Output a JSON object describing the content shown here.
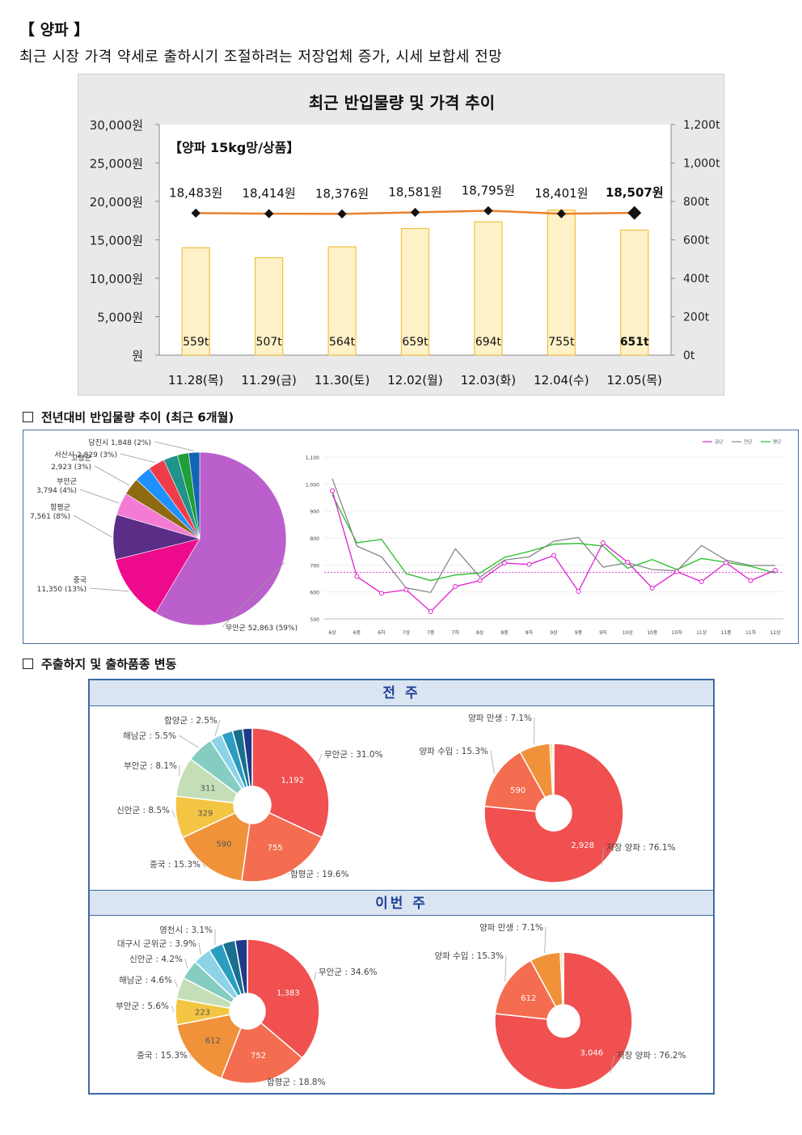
{
  "header": {
    "title": "【 양파 】",
    "subtitle": "최근 시장 가격 약세로 출하시기 조절하려는 저장업체 증가, 시세 보합세 전망"
  },
  "chart_data": [
    {
      "type": "bar",
      "title": "최근 반입물량 및 가격 추이",
      "annotation": "【양파 15kg망/상품】",
      "categories": [
        "11.28(목)",
        "11.29(금)",
        "11.30(토)",
        "12.02(월)",
        "12.03(화)",
        "12.04(수)",
        "12.05(목)"
      ],
      "series": [
        {
          "name": "반입물량",
          "unit": "t",
          "values": [
            559,
            507,
            564,
            659,
            694,
            755,
            651
          ],
          "labels": [
            "559t",
            "507t",
            "564t",
            "659t",
            "694t",
            "755t",
            "651t"
          ]
        },
        {
          "name": "가격",
          "unit": "원",
          "values": [
            18483,
            18414,
            18376,
            18581,
            18795,
            18401,
            18507
          ],
          "labels": [
            "18,483원",
            "18,414원",
            "18,376원",
            "18,581원",
            "18,795원",
            "18,401원",
            "18,507원"
          ]
        }
      ],
      "y_left": {
        "ticks": [
          "30,000원",
          "25,000원",
          "20,000원",
          "15,000원",
          "10,000원",
          "5,000원",
          "원"
        ],
        "ylim": [
          0,
          30000
        ]
      },
      "y_right": {
        "ticks": [
          "1,200t",
          "1,000t",
          "800t",
          "600t",
          "400t",
          "200t",
          "0t"
        ],
        "ylim": [
          0,
          1200
        ]
      },
      "colors": {
        "bar_fill": "#fff2c9",
        "bar_stroke": "#f0c040",
        "line": "#e8822e",
        "marker": "#111111"
      }
    },
    {
      "type": "pie",
      "slices": [
        {
          "label": "무안군 52,863 (59%)",
          "value": 52863,
          "color": "#bb5fcc"
        },
        {
          "label": "중국\n11,350 (13%)",
          "value": 11350,
          "color": "#ee0a8c"
        },
        {
          "label": "함평군\n7,561 (8%)",
          "value": 7561,
          "color": "#5a2d86"
        },
        {
          "label": "부안군\n3,794 (4%)",
          "value": 3794,
          "color": "#f47bd4"
        },
        {
          "label": "고령군\n2,923 (3%)",
          "value": 2923,
          "color": "#8d6a10"
        },
        {
          "label": "",
          "value": 2800,
          "color": "#1e90ff"
        },
        {
          "label": "서산시 2,829 (3%)",
          "value": 2829,
          "color": "#f03c4a"
        },
        {
          "label": "",
          "value": 2400,
          "color": "#20938a"
        },
        {
          "label": "",
          "value": 1900,
          "color": "#1f9e3a"
        },
        {
          "label": "당진시 1,848 (2%)",
          "value": 1848,
          "color": "#1464b4"
        }
      ]
    },
    {
      "type": "line",
      "legend": [
        "금년",
        "전년",
        "평년"
      ],
      "x": [
        "6상",
        "6중",
        "6하",
        "7상",
        "7중",
        "7하",
        "8상",
        "8중",
        "8하",
        "9상",
        "9중",
        "9하",
        "10상",
        "10중",
        "10하",
        "11상",
        "11중",
        "11하",
        "12상"
      ],
      "y_ticks": [
        "1,100",
        "1,000",
        "900",
        "800",
        "700",
        "600",
        "500"
      ],
      "ylim": [
        500,
        1100
      ],
      "series": [
        {
          "name": "금년",
          "color": "#e020d0",
          "values": [
            975,
            657,
            595,
            608,
            527,
            620,
            642,
            707,
            702,
            735,
            602,
            782,
            710,
            614,
            675,
            638,
            708,
            642,
            680
          ]
        },
        {
          "name": "전년",
          "color": "#888888",
          "values": [
            1020,
            770,
            730,
            615,
            598,
            760,
            655,
            718,
            730,
            788,
            802,
            692,
            708,
            683,
            678,
            772,
            718,
            698,
            698
          ]
        },
        {
          "name": "평년",
          "color": "#22c022",
          "values": [
            960,
            782,
            795,
            668,
            642,
            663,
            670,
            728,
            750,
            777,
            780,
            770,
            688,
            720,
            683,
            724,
            710,
            695,
            670
          ]
        }
      ],
      "reference_line": {
        "value": 672,
        "color": "#e020d0"
      }
    },
    {
      "type": "pie",
      "title": "전 주",
      "slices": [
        {
          "label": "무안군 : 31.0%",
          "value": 1192,
          "text": "1,192",
          "color": "#f05050"
        },
        {
          "label": "함평군 : 19.6%",
          "value": 755,
          "text": "755",
          "color": "#f46d50"
        },
        {
          "label": "중국 : 15.3%",
          "value": 590,
          "text": "590",
          "color": "#f0923a"
        },
        {
          "label": "신안군 : 8.5%",
          "value": 329,
          "text": "329",
          "color": "#f3c542"
        },
        {
          "label": "부안군 : 8.1%",
          "value": 311,
          "text": "311",
          "color": "#c4dfb7"
        },
        {
          "label": "해남군 : 5.5%",
          "value": 212,
          "text": "",
          "color": "#84cdc0"
        },
        {
          "label": "함양군 : 2.5%",
          "value": 96,
          "text": "",
          "color": "#8dd3e8"
        },
        {
          "label": "",
          "value": 90,
          "text": "",
          "color": "#2a9dc0"
        },
        {
          "label": "",
          "value": 80,
          "text": "",
          "color": "#1a6e8e"
        },
        {
          "label": "",
          "value": 75,
          "text": "",
          "color": "#1e3a8a"
        }
      ]
    },
    {
      "type": "pie",
      "title": "전 주",
      "slices": [
        {
          "label": "저장 양파 : 76.1%",
          "value": 2928,
          "text": "2,928",
          "color": "#f05050"
        },
        {
          "label": "양파 수입 : 15.3%",
          "value": 590,
          "text": "590",
          "color": "#f46d50"
        },
        {
          "label": "양파 만생 : 7.1%",
          "value": 273,
          "text": "",
          "color": "#f0923a"
        },
        {
          "label": "",
          "value": 20,
          "text": "",
          "color": "#f3c542"
        },
        {
          "label": "",
          "value": 15,
          "text": "",
          "color": "#c4dfb7"
        }
      ]
    },
    {
      "type": "pie",
      "title": "이번 주",
      "slices": [
        {
          "label": "무안군 : 34.6%",
          "value": 1383,
          "text": "1,383",
          "color": "#f05050"
        },
        {
          "label": "함평군 : 18.8%",
          "value": 752,
          "text": "752",
          "color": "#f46d50"
        },
        {
          "label": "중국 : 15.3%",
          "value": 612,
          "text": "612",
          "color": "#f0923a"
        },
        {
          "label": "부안군 : 5.6%",
          "value": 223,
          "text": "223",
          "color": "#f3c542"
        },
        {
          "label": "해남군 : 4.6%",
          "value": 184,
          "text": "",
          "color": "#c4dfb7"
        },
        {
          "label": "신안군 : 4.2%",
          "value": 168,
          "text": "",
          "color": "#84cdc0"
        },
        {
          "label": "대구시 군위군 : 3.9%",
          "value": 156,
          "text": "",
          "color": "#8dd3e8"
        },
        {
          "label": "영천시 : 3.1%",
          "value": 124,
          "text": "",
          "color": "#2a9dc0"
        },
        {
          "label": "",
          "value": 110,
          "text": "",
          "color": "#1a6e8e"
        },
        {
          "label": "",
          "value": 105,
          "text": "",
          "color": "#1e3a8a"
        }
      ]
    },
    {
      "type": "pie",
      "title": "이번 주",
      "slices": [
        {
          "label": "저장 양파 : 76.2%",
          "value": 3046,
          "text": "3,046",
          "color": "#f05050"
        },
        {
          "label": "양파 수입 : 15.3%",
          "value": 612,
          "text": "612",
          "color": "#f46d50"
        },
        {
          "label": "양파 만생 : 7.1%",
          "value": 284,
          "text": "",
          "color": "#f0923a"
        },
        {
          "label": "",
          "value": 18,
          "text": "",
          "color": "#f3c542"
        },
        {
          "label": "",
          "value": 12,
          "text": "",
          "color": "#c4dfb7"
        }
      ]
    }
  ],
  "sections": {
    "s1": "전년대비 반입물량 추이 (최근 6개월)",
    "s2": "주출하지 및 출하품종 변동"
  },
  "panel3": {
    "prev_week": "전 주",
    "this_week": "이번 주"
  }
}
